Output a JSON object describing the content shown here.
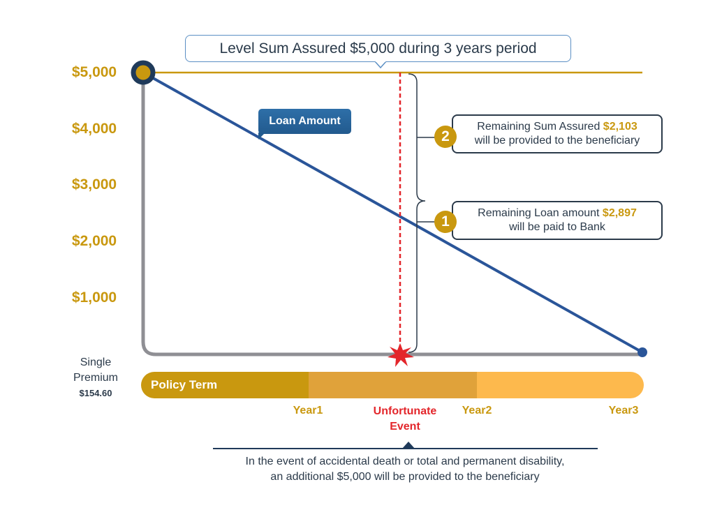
{
  "title": "Level Sum Assured $5,000 during 3 years period",
  "y_axis_labels": [
    "$5,000",
    "$4,000",
    "$3,000",
    "$2,000",
    "$1,000"
  ],
  "loan_label": "Loan Amount",
  "callouts": [
    {
      "number": "2",
      "line1": "Remaining Sum Assured ",
      "amount": "$2,103",
      "line2": "will be provided to the beneficiary"
    },
    {
      "number": "1",
      "line1": "Remaining Loan amount ",
      "amount": "$2,897",
      "line2": "will be paid to Bank"
    }
  ],
  "premium": {
    "line1": "Single",
    "line2": "Premium",
    "amount": "$154.60"
  },
  "policy_term_label": "Policy Term",
  "timeline": {
    "year1": "Year1",
    "year2": "Year2",
    "year3": "Year3",
    "event_line1": "Unfortunate",
    "event_line2": "Event"
  },
  "note": {
    "line1": "In the event of accidental death or total and permanent disability,",
    "line2": "an additional $5,000 will be provided to the beneficiary"
  },
  "colors": {
    "gold": "#c9980f",
    "navy": "#1f3a5a",
    "blue": "#2a5599",
    "red": "#e3262b",
    "seg1": "#c9980f",
    "seg2": "#e0a23a",
    "seg3": "#fdb94d"
  }
}
